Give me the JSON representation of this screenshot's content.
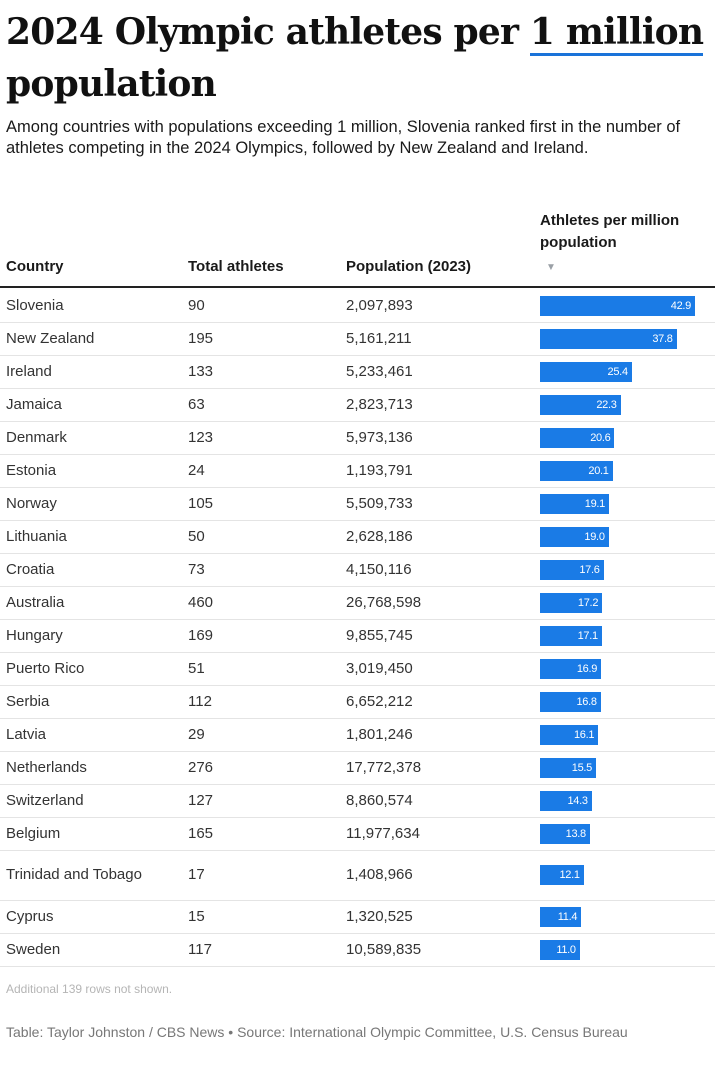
{
  "title": {
    "before": "2024 Olympic athletes per ",
    "highlight": "1 million",
    "after": " population"
  },
  "subtitle": "Among countries with populations exceeding 1 million, Slovenia ranked first in the number of athletes competing in the 2024 Olympics, followed by New Zealand and Ireland.",
  "note": "Additional 139 rows not shown.",
  "credit": "Table: Taylor Johnston / CBS News • Source: International Olympic Committee, U.S. Census Bureau",
  "accent_color": "#1a7be6",
  "sort_icon": "sort-descending-icon",
  "chart_data": {
    "type": "table",
    "columns": [
      "Country",
      "Total athletes",
      "Population (2023)",
      "Athletes per million population"
    ],
    "sorted_by": "Athletes per million population",
    "sort_order": "descending",
    "max_value": 42.9,
    "rows": [
      {
        "country": "Slovenia",
        "athletes": "90",
        "population": "2,097,893",
        "per_million": 42.9,
        "label": "42.9"
      },
      {
        "country": "New Zealand",
        "athletes": "195",
        "population": "5,161,211",
        "per_million": 37.8,
        "label": "37.8"
      },
      {
        "country": "Ireland",
        "athletes": "133",
        "population": "5,233,461",
        "per_million": 25.4,
        "label": "25.4"
      },
      {
        "country": "Jamaica",
        "athletes": "63",
        "population": "2,823,713",
        "per_million": 22.3,
        "label": "22.3"
      },
      {
        "country": "Denmark",
        "athletes": "123",
        "population": "5,973,136",
        "per_million": 20.6,
        "label": "20.6"
      },
      {
        "country": "Estonia",
        "athletes": "24",
        "population": "1,193,791",
        "per_million": 20.1,
        "label": "20.1"
      },
      {
        "country": "Norway",
        "athletes": "105",
        "population": "5,509,733",
        "per_million": 19.1,
        "label": "19.1"
      },
      {
        "country": "Lithuania",
        "athletes": "50",
        "population": "2,628,186",
        "per_million": 19.0,
        "label": "19.0"
      },
      {
        "country": "Croatia",
        "athletes": "73",
        "population": "4,150,116",
        "per_million": 17.6,
        "label": "17.6"
      },
      {
        "country": "Australia",
        "athletes": "460",
        "population": "26,768,598",
        "per_million": 17.2,
        "label": "17.2"
      },
      {
        "country": "Hungary",
        "athletes": "169",
        "population": "9,855,745",
        "per_million": 17.1,
        "label": "17.1"
      },
      {
        "country": "Puerto Rico",
        "athletes": "51",
        "population": "3,019,450",
        "per_million": 16.9,
        "label": "16.9"
      },
      {
        "country": "Serbia",
        "athletes": "112",
        "population": "6,652,212",
        "per_million": 16.8,
        "label": "16.8"
      },
      {
        "country": "Latvia",
        "athletes": "29",
        "population": "1,801,246",
        "per_million": 16.1,
        "label": "16.1"
      },
      {
        "country": "Netherlands",
        "athletes": "276",
        "population": "17,772,378",
        "per_million": 15.5,
        "label": "15.5"
      },
      {
        "country": "Switzerland",
        "athletes": "127",
        "population": "8,860,574",
        "per_million": 14.3,
        "label": "14.3"
      },
      {
        "country": "Belgium",
        "athletes": "165",
        "population": "11,977,634",
        "per_million": 13.8,
        "label": "13.8"
      },
      {
        "country": "Trinidad and Tobago",
        "athletes": "17",
        "population": "1,408,966",
        "per_million": 12.1,
        "label": "12.1"
      },
      {
        "country": "Cyprus",
        "athletes": "15",
        "population": "1,320,525",
        "per_million": 11.4,
        "label": "11.4"
      },
      {
        "country": "Sweden",
        "athletes": "117",
        "population": "10,589,835",
        "per_million": 11.0,
        "label": "11.0"
      }
    ]
  }
}
